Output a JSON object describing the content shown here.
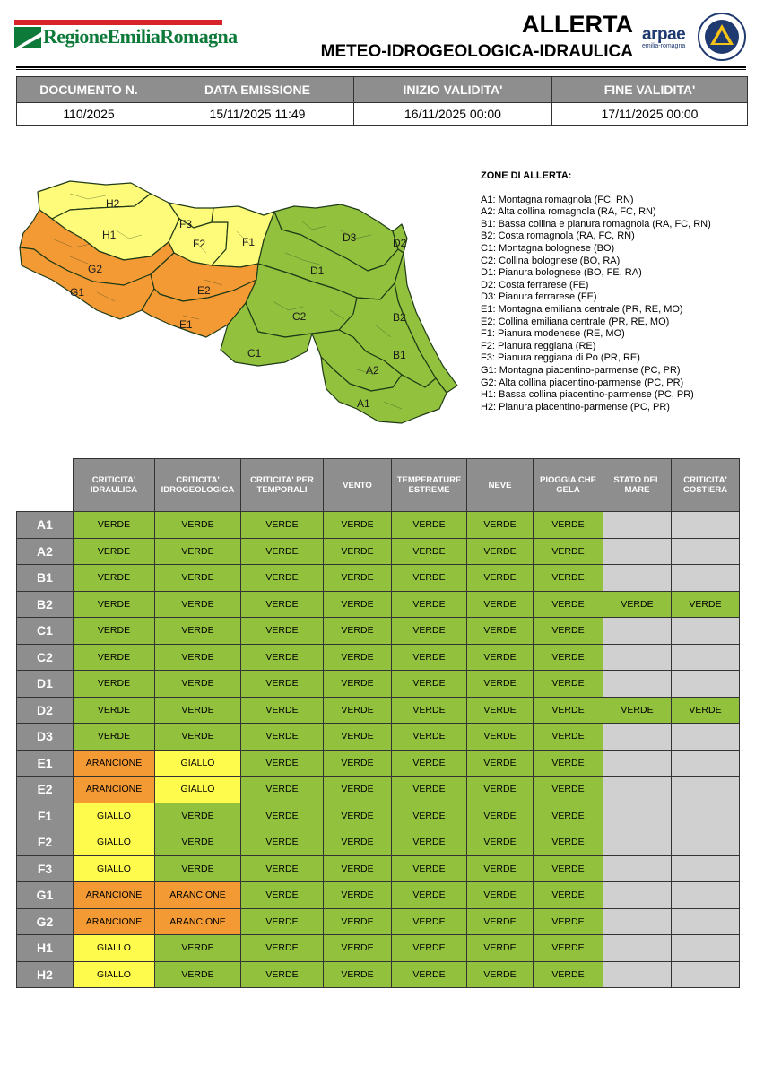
{
  "header": {
    "logo_text": "RegioneEmiliaRomagna",
    "title_line1": "ALLERTA",
    "title_line2": "METEO-IDROGEOLOGICA-IDRAULICA",
    "arpae_word": "arpae",
    "arpae_sub": "emilia-romagna"
  },
  "document": {
    "columns": [
      "DOCUMENTO N.",
      "DATA EMISSIONE",
      "INIZIO VALIDITA'",
      "FINE VALIDITA'"
    ],
    "values": [
      "110/2025",
      "15/11/2025 11:49",
      "16/11/2025 00:00",
      "17/11/2025 00:00"
    ]
  },
  "map": {
    "labels": [
      "H2",
      "H1",
      "F3",
      "F2",
      "F1",
      "D3",
      "D2",
      "D1",
      "G2",
      "G1",
      "E2",
      "E1",
      "C2",
      "B2",
      "C1",
      "B1",
      "A2",
      "A1"
    ],
    "colors": {
      "verde": "#92c13e",
      "giallo": "#fffb7a",
      "arancione": "#f39a35",
      "border": "#1f3a16"
    }
  },
  "zones": {
    "title": "ZONE DI ALLERTA:",
    "items": [
      "A1: Montagna romagnola (FC, RN)",
      "A2: Alta collina romagnola (RA, FC, RN)",
      "B1: Bassa collina e pianura romagnola (RA, FC, RN)",
      "B2: Costa romagnola (RA, FC, RN)",
      "C1: Montagna bolognese (BO)",
      "C2: Collina bolognese (BO, RA)",
      "D1: Pianura bolognese (BO, FE, RA)",
      "D2: Costa ferrarese (FE)",
      "D3: Pianura ferrarese (FE)",
      "E1: Montagna emiliana centrale (PR, RE, MO)",
      "E2: Collina emiliana centrale (PR, RE, MO)",
      "F1: Pianura modenese (RE, MO)",
      "F2: Pianura reggiana (RE)",
      "F3: Pianura reggiana di Po (PR, RE)",
      "G1: Montagna piacentino-parmense (PC, PR)",
      "G2: Alta collina piacentino-parmense (PC, PR)",
      "H1: Bassa collina piacentino-parmense (PC, PR)",
      "H2: Pianura piacentino-parmense (PC, PR)"
    ]
  },
  "alerts": {
    "columns": [
      [
        "CRITICITA'",
        "IDRAULICA"
      ],
      [
        "CRITICITA'",
        "IDROGEOLOGICA"
      ],
      [
        "CRITICITA' PER",
        "TEMPORALI"
      ],
      [
        "VENTO"
      ],
      [
        "TEMPERATURE",
        "ESTREME"
      ],
      [
        "NEVE"
      ],
      [
        "PIOGGIA CHE",
        "GELA"
      ],
      [
        "STATO DEL",
        "MARE"
      ],
      [
        "CRITICITA'",
        "COSTIERA"
      ]
    ],
    "level_colors": {
      "VERDE": "#92c13e",
      "GIALLO": "#fffb4c",
      "ARANCIONE": "#f39a35",
      "": "#d0d0d0"
    },
    "rows": [
      {
        "zone": "A1",
        "levels": [
          "VERDE",
          "VERDE",
          "VERDE",
          "VERDE",
          "VERDE",
          "VERDE",
          "VERDE",
          "",
          ""
        ]
      },
      {
        "zone": "A2",
        "levels": [
          "VERDE",
          "VERDE",
          "VERDE",
          "VERDE",
          "VERDE",
          "VERDE",
          "VERDE",
          "",
          ""
        ]
      },
      {
        "zone": "B1",
        "levels": [
          "VERDE",
          "VERDE",
          "VERDE",
          "VERDE",
          "VERDE",
          "VERDE",
          "VERDE",
          "",
          ""
        ]
      },
      {
        "zone": "B2",
        "levels": [
          "VERDE",
          "VERDE",
          "VERDE",
          "VERDE",
          "VERDE",
          "VERDE",
          "VERDE",
          "VERDE",
          "VERDE"
        ]
      },
      {
        "zone": "C1",
        "levels": [
          "VERDE",
          "VERDE",
          "VERDE",
          "VERDE",
          "VERDE",
          "VERDE",
          "VERDE",
          "",
          ""
        ]
      },
      {
        "zone": "C2",
        "levels": [
          "VERDE",
          "VERDE",
          "VERDE",
          "VERDE",
          "VERDE",
          "VERDE",
          "VERDE",
          "",
          ""
        ]
      },
      {
        "zone": "D1",
        "levels": [
          "VERDE",
          "VERDE",
          "VERDE",
          "VERDE",
          "VERDE",
          "VERDE",
          "VERDE",
          "",
          ""
        ]
      },
      {
        "zone": "D2",
        "levels": [
          "VERDE",
          "VERDE",
          "VERDE",
          "VERDE",
          "VERDE",
          "VERDE",
          "VERDE",
          "VERDE",
          "VERDE"
        ]
      },
      {
        "zone": "D3",
        "levels": [
          "VERDE",
          "VERDE",
          "VERDE",
          "VERDE",
          "VERDE",
          "VERDE",
          "VERDE",
          "",
          ""
        ]
      },
      {
        "zone": "E1",
        "levels": [
          "ARANCIONE",
          "GIALLO",
          "VERDE",
          "VERDE",
          "VERDE",
          "VERDE",
          "VERDE",
          "",
          ""
        ]
      },
      {
        "zone": "E2",
        "levels": [
          "ARANCIONE",
          "GIALLO",
          "VERDE",
          "VERDE",
          "VERDE",
          "VERDE",
          "VERDE",
          "",
          ""
        ]
      },
      {
        "zone": "F1",
        "levels": [
          "GIALLO",
          "VERDE",
          "VERDE",
          "VERDE",
          "VERDE",
          "VERDE",
          "VERDE",
          "",
          ""
        ]
      },
      {
        "zone": "F2",
        "levels": [
          "GIALLO",
          "VERDE",
          "VERDE",
          "VERDE",
          "VERDE",
          "VERDE",
          "VERDE",
          "",
          ""
        ]
      },
      {
        "zone": "F3",
        "levels": [
          "GIALLO",
          "VERDE",
          "VERDE",
          "VERDE",
          "VERDE",
          "VERDE",
          "VERDE",
          "",
          ""
        ]
      },
      {
        "zone": "G1",
        "levels": [
          "ARANCIONE",
          "ARANCIONE",
          "VERDE",
          "VERDE",
          "VERDE",
          "VERDE",
          "VERDE",
          "",
          ""
        ]
      },
      {
        "zone": "G2",
        "levels": [
          "ARANCIONE",
          "ARANCIONE",
          "VERDE",
          "VERDE",
          "VERDE",
          "VERDE",
          "VERDE",
          "",
          ""
        ]
      },
      {
        "zone": "H1",
        "levels": [
          "GIALLO",
          "VERDE",
          "VERDE",
          "VERDE",
          "VERDE",
          "VERDE",
          "VERDE",
          "",
          ""
        ]
      },
      {
        "zone": "H2",
        "levels": [
          "GIALLO",
          "VERDE",
          "VERDE",
          "VERDE",
          "VERDE",
          "VERDE",
          "VERDE",
          "",
          ""
        ]
      }
    ]
  }
}
